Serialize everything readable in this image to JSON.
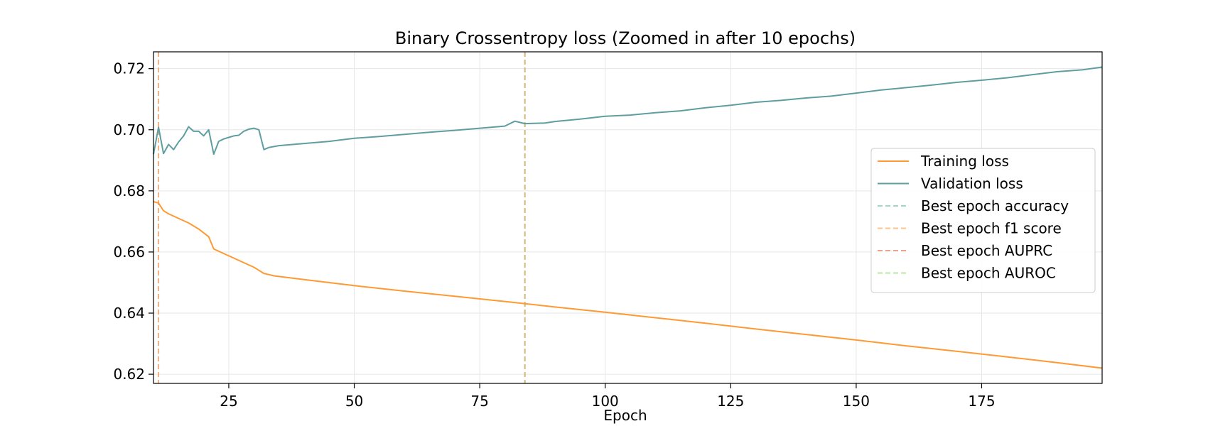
{
  "chart_data": {
    "type": "line",
    "title": "Binary Crossentropy loss (Zoomed in after 10 epochs)",
    "xlabel": "Epoch",
    "ylabel": "",
    "xlim": [
      10,
      199
    ],
    "ylim": [
      0.617,
      0.7255
    ],
    "xticks": [
      25,
      50,
      75,
      100,
      125,
      150,
      175
    ],
    "yticks": [
      0.62,
      0.64,
      0.66,
      0.68,
      0.7,
      0.72
    ],
    "ytick_labels": [
      "0.62",
      "0.64",
      "0.66",
      "0.68",
      "0.70",
      "0.72"
    ],
    "grid": true,
    "legend_position": "center-right",
    "series": [
      {
        "name": "Training loss",
        "color": "#ff9933",
        "points": [
          [
            10,
            0.6765
          ],
          [
            11,
            0.676
          ],
          [
            12,
            0.6735
          ],
          [
            13,
            0.6725
          ],
          [
            15,
            0.671
          ],
          [
            17,
            0.6695
          ],
          [
            19,
            0.6675
          ],
          [
            21,
            0.665
          ],
          [
            22,
            0.661
          ],
          [
            24,
            0.6595
          ],
          [
            26,
            0.658
          ],
          [
            28,
            0.6565
          ],
          [
            30,
            0.655
          ],
          [
            31,
            0.654
          ],
          [
            32,
            0.653
          ],
          [
            34,
            0.6522
          ],
          [
            40,
            0.651
          ],
          [
            50,
            0.649
          ],
          [
            60,
            0.6472
          ],
          [
            70,
            0.6455
          ],
          [
            80,
            0.6438
          ],
          [
            90,
            0.642
          ],
          [
            100,
            0.6403
          ],
          [
            110,
            0.6385
          ],
          [
            120,
            0.6367
          ],
          [
            130,
            0.6348
          ],
          [
            140,
            0.633
          ],
          [
            150,
            0.6312
          ],
          [
            160,
            0.6293
          ],
          [
            170,
            0.6275
          ],
          [
            180,
            0.6257
          ],
          [
            190,
            0.6238
          ],
          [
            199,
            0.622
          ]
        ]
      },
      {
        "name": "Validation loss",
        "color": "#5f9ea0",
        "points": [
          [
            10,
            0.692
          ],
          [
            11,
            0.7008
          ],
          [
            12,
            0.6922
          ],
          [
            13,
            0.6952
          ],
          [
            14,
            0.6935
          ],
          [
            15,
            0.696
          ],
          [
            16,
            0.698
          ],
          [
            17,
            0.701
          ],
          [
            18,
            0.6995
          ],
          [
            19,
            0.6995
          ],
          [
            20,
            0.698
          ],
          [
            21,
            0.7
          ],
          [
            22,
            0.692
          ],
          [
            23,
            0.6962
          ],
          [
            24,
            0.697
          ],
          [
            25,
            0.6975
          ],
          [
            26,
            0.698
          ],
          [
            27,
            0.6982
          ],
          [
            28,
            0.6995
          ],
          [
            29,
            0.7002
          ],
          [
            30,
            0.7005
          ],
          [
            31,
            0.7
          ],
          [
            32,
            0.6935
          ],
          [
            33,
            0.6942
          ],
          [
            35,
            0.6948
          ],
          [
            40,
            0.6955
          ],
          [
            45,
            0.6962
          ],
          [
            50,
            0.6972
          ],
          [
            55,
            0.6978
          ],
          [
            60,
            0.6985
          ],
          [
            65,
            0.6992
          ],
          [
            70,
            0.6998
          ],
          [
            75,
            0.7005
          ],
          [
            80,
            0.7012
          ],
          [
            82,
            0.7028
          ],
          [
            84,
            0.702
          ],
          [
            88,
            0.7022
          ],
          [
            90,
            0.7027
          ],
          [
            95,
            0.7035
          ],
          [
            100,
            0.7044
          ],
          [
            105,
            0.7048
          ],
          [
            110,
            0.7056
          ],
          [
            115,
            0.7062
          ],
          [
            120,
            0.7072
          ],
          [
            125,
            0.708
          ],
          [
            130,
            0.709
          ],
          [
            135,
            0.7096
          ],
          [
            140,
            0.7104
          ],
          [
            145,
            0.711
          ],
          [
            150,
            0.712
          ],
          [
            155,
            0.713
          ],
          [
            160,
            0.7138
          ],
          [
            165,
            0.7146
          ],
          [
            170,
            0.7155
          ],
          [
            175,
            0.7162
          ],
          [
            180,
            0.717
          ],
          [
            185,
            0.718
          ],
          [
            190,
            0.719
          ],
          [
            195,
            0.7196
          ],
          [
            199,
            0.7205
          ]
        ]
      }
    ],
    "vlines": [
      {
        "name": "Best epoch accuracy",
        "x": 84,
        "color": "#9ed9c6"
      },
      {
        "name": "Best epoch f1 score",
        "x": 11,
        "color": "#ffc48a"
      },
      {
        "name": "Best epoch AUPRC",
        "x": 11,
        "color": "#f2a08e"
      },
      {
        "name": "Best epoch AUROC",
        "x": 84,
        "color": "#b8e6a3"
      }
    ],
    "visible_vlines": [
      {
        "x": 11,
        "color": "#f2b07e"
      },
      {
        "x": 84,
        "color": "#d4b87a"
      }
    ]
  }
}
